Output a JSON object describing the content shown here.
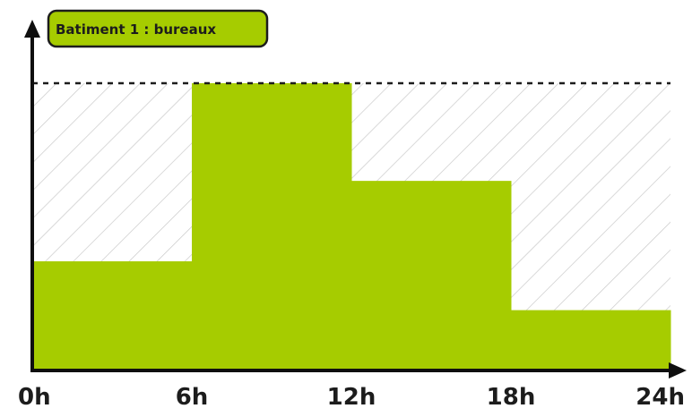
{
  "chart_data": {
    "type": "bar",
    "title": "Batiment 1 : bureaux",
    "xlabel": "",
    "ylabel": "",
    "x_ticks": [
      "0h",
      "6h",
      "12h",
      "18h",
      "24h"
    ],
    "x_range": [
      0,
      24
    ],
    "ylim": [
      0,
      1
    ],
    "reference_level": 1,
    "series": [
      {
        "bins": [
          {
            "start": 0,
            "end": 6,
            "value": 0.38
          },
          {
            "start": 6,
            "end": 12,
            "value": 1.0
          },
          {
            "start": 12,
            "end": 18,
            "value": 0.66
          },
          {
            "start": 18,
            "end": 24,
            "value": 0.21
          }
        ]
      }
    ],
    "grid": false,
    "colors": {
      "bar": "#a6cc00",
      "axis": "#0f0f0f",
      "hatch": "#c9c9c9",
      "title_bg": "#a6cc00",
      "title_border": "#1c1c1c"
    }
  }
}
